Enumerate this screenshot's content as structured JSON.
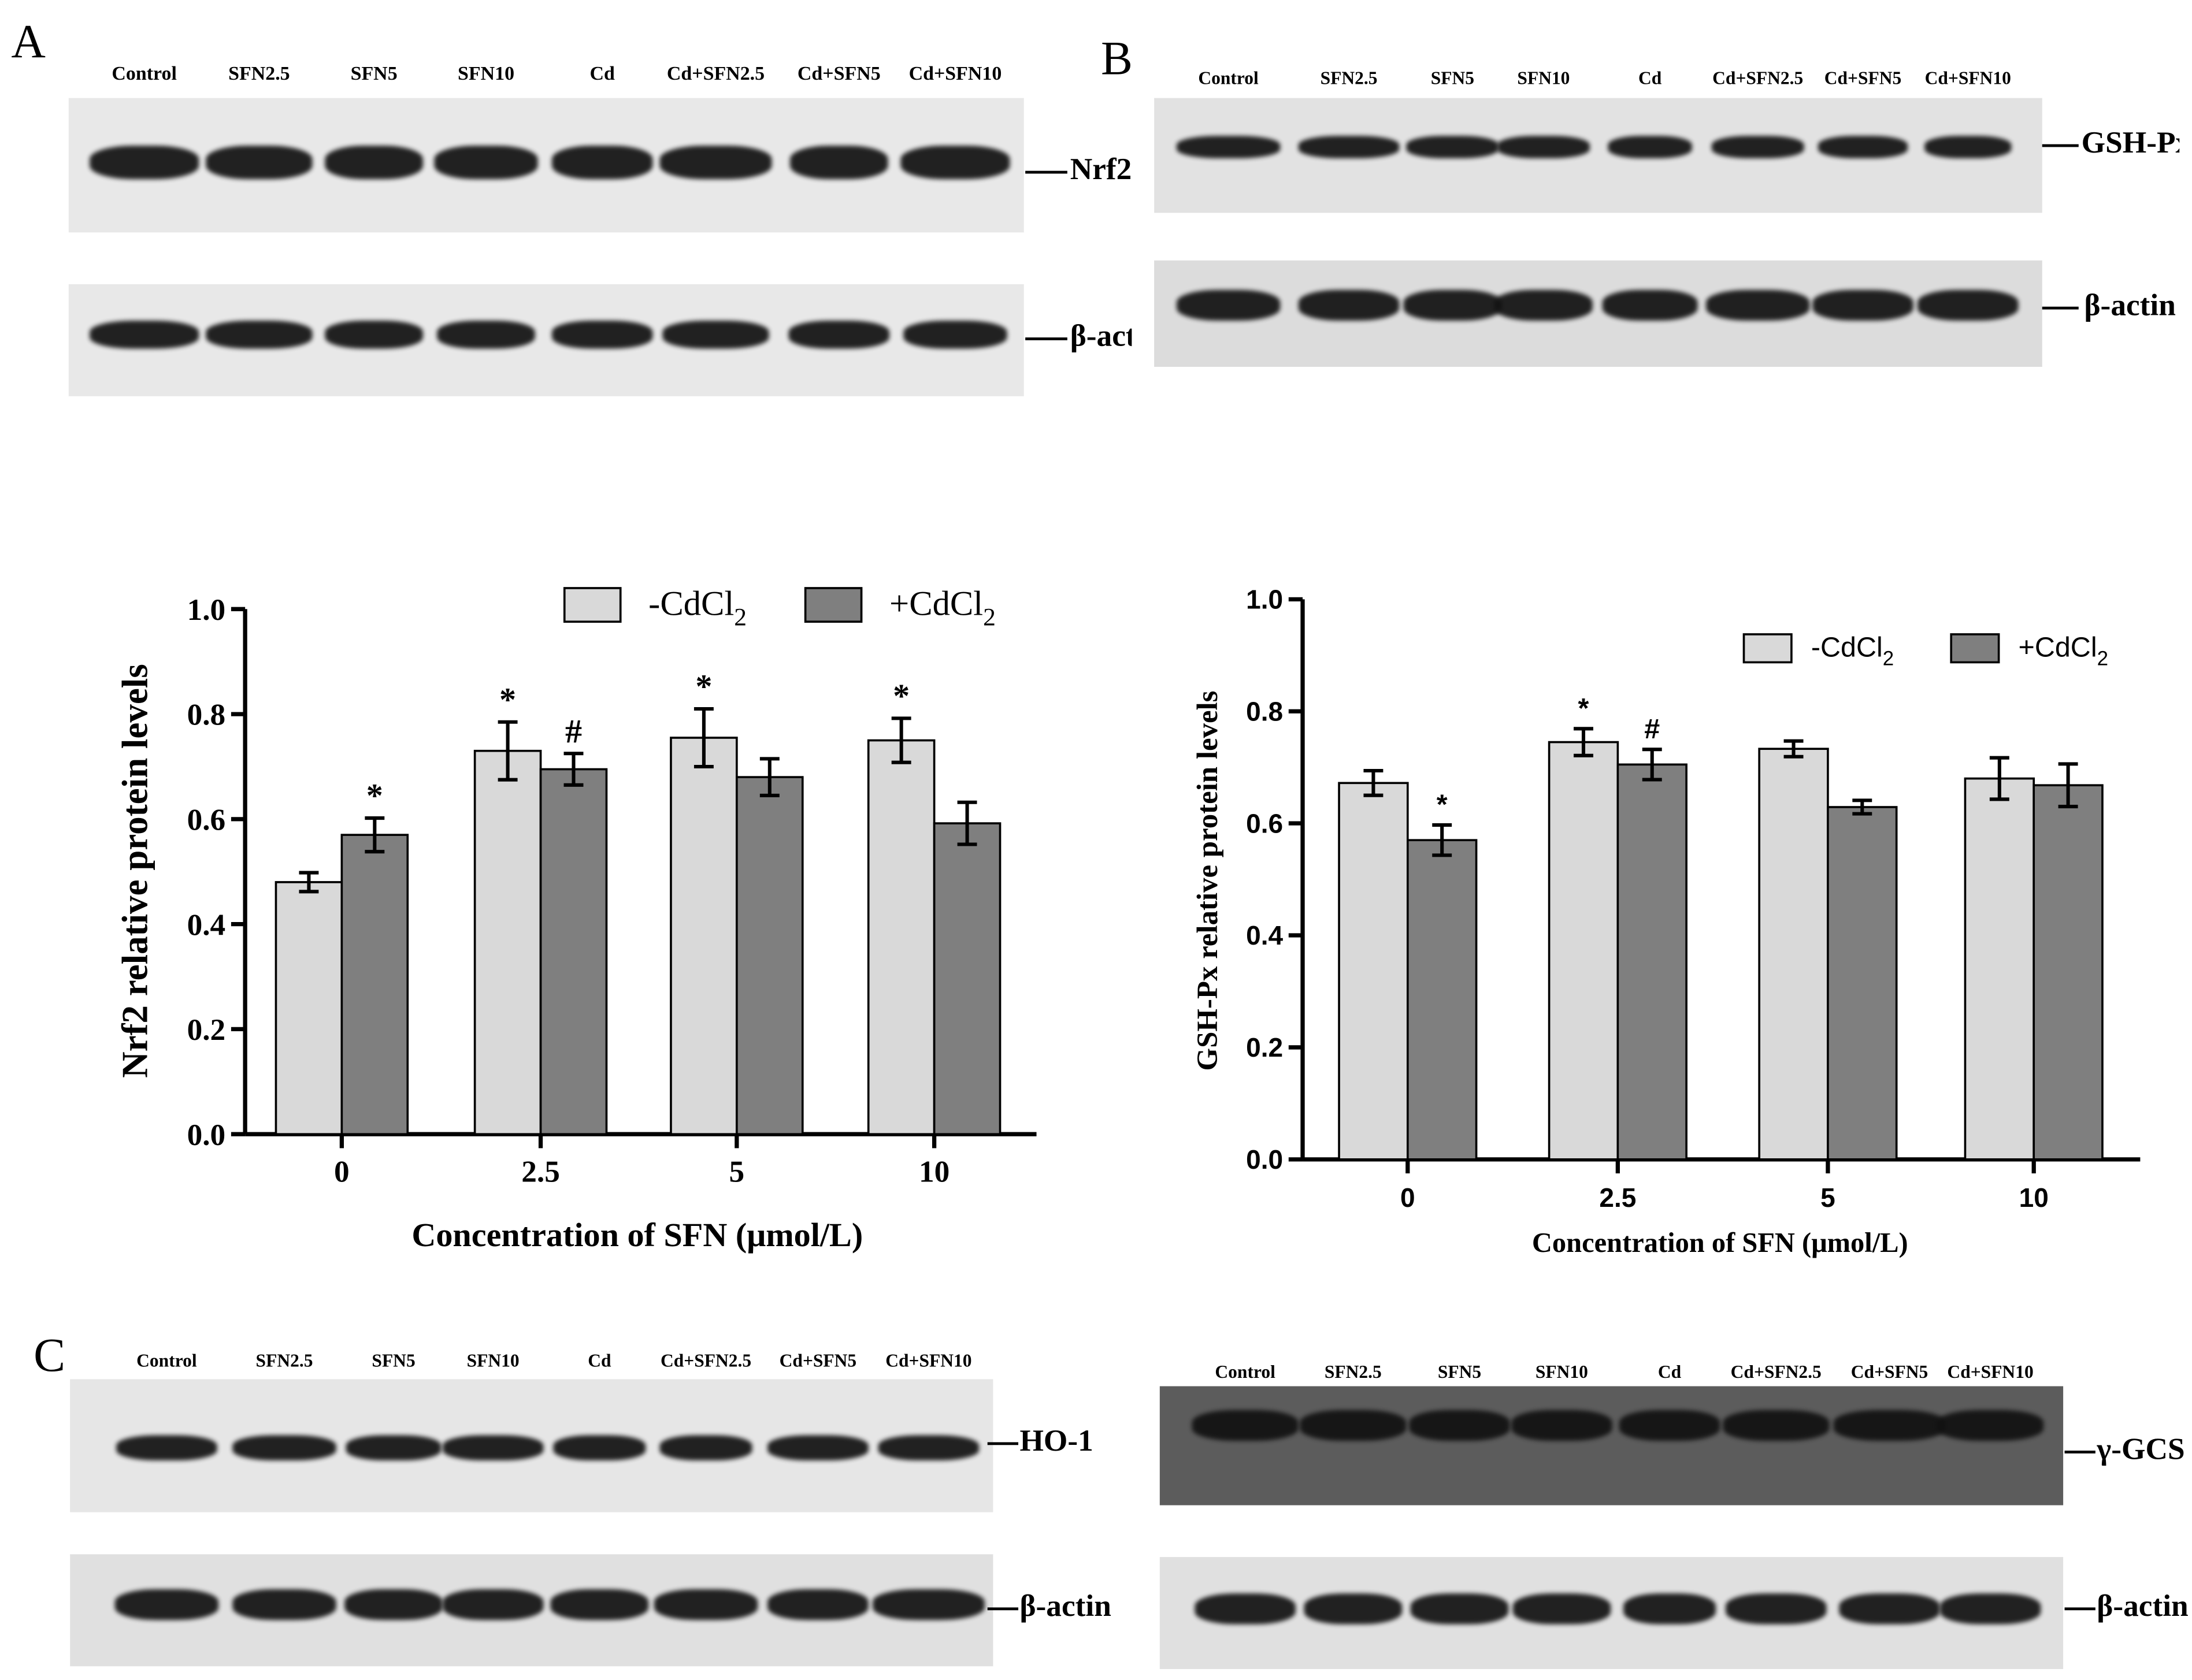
{
  "panels": {
    "A": "A",
    "B": "B",
    "C": "C"
  },
  "lane_labels": [
    "Control",
    "SFN2.5",
    "SFN5",
    "SFN10",
    "Cd",
    "Cd+SFN2.5",
    "Cd+SFN5",
    "Cd+SFN10"
  ],
  "blots": {
    "a_top": {
      "label": "Nrf2"
    },
    "a_bottom": {
      "label": "β-actin"
    },
    "b_top": {
      "label": "GSH-Px"
    },
    "b_bottom": {
      "label": "β-actin"
    },
    "c1_top": {
      "label": "HO-1"
    },
    "c1_bottom": {
      "label": "β-actin"
    },
    "c2_top": {
      "label": "γ-GCS"
    },
    "c2_bottom": {
      "label": "β-actin"
    }
  },
  "colors": {
    "minus_cd": "#d9d9d9",
    "plus_cd": "#7f7f7f",
    "blot_bg_light": "#e9e9e9",
    "blot_bg_dark": "#5a5a5a",
    "band": "#111111"
  },
  "chart_data": [
    {
      "type": "bar",
      "panel": "A",
      "title": "",
      "xlabel": "Concentration of SFN (μmol/L)",
      "ylabel": "Nrf2 relative protein levels",
      "categories": [
        "0",
        "2.5",
        "5",
        "10"
      ],
      "ylim": [
        0,
        1.0
      ],
      "yticks": [
        "0.0",
        "0.2",
        "0.4",
        "0.6",
        "0.8",
        "1.0"
      ],
      "legend_position": "top-right",
      "series": [
        {
          "name": "-CdCl2",
          "values": [
            0.48,
            0.73,
            0.755,
            0.75
          ],
          "errors": [
            0.018,
            0.055,
            0.055,
            0.042
          ],
          "annotations": [
            "",
            "*",
            "*",
            "*"
          ]
        },
        {
          "name": "+CdCl2",
          "values": [
            0.57,
            0.695,
            0.68,
            0.592
          ],
          "errors": [
            0.032,
            0.03,
            0.035,
            0.04
          ],
          "annotations": [
            "*",
            "#",
            "",
            ""
          ]
        }
      ]
    },
    {
      "type": "bar",
      "panel": "B",
      "title": "",
      "xlabel": "Concentration of SFN (μmol/L)",
      "ylabel": "GSH-Px relative protein levels",
      "categories": [
        "0",
        "2.5",
        "5",
        "10"
      ],
      "ylim": [
        0,
        1.0
      ],
      "yticks": [
        "0.0",
        "0.2",
        "0.4",
        "0.6",
        "0.8",
        "1.0"
      ],
      "legend_position": "top-right",
      "series": [
        {
          "name": "-CdCl2",
          "values": [
            0.672,
            0.745,
            0.733,
            0.68
          ],
          "errors": [
            0.022,
            0.024,
            0.014,
            0.037
          ],
          "annotations": [
            "",
            "*",
            "",
            ""
          ]
        },
        {
          "name": "+CdCl2",
          "values": [
            0.57,
            0.705,
            0.629,
            0.668
          ],
          "errors": [
            0.027,
            0.027,
            0.012,
            0.038
          ],
          "annotations": [
            "*",
            "#",
            "",
            ""
          ]
        }
      ]
    }
  ]
}
